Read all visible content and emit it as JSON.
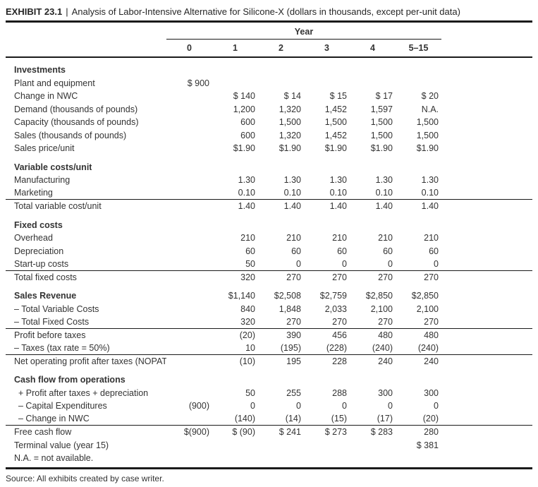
{
  "title": {
    "exhibit_label": "EXHIBIT 23.1",
    "separator": "|",
    "text": "Analysis of Labor-Intensive Alternative for Silicone-X (dollars in thousands, except per-unit data)"
  },
  "table": {
    "year_header": "Year",
    "columns": [
      "0",
      "1",
      "2",
      "3",
      "4",
      "5–15"
    ],
    "rows": [
      {
        "type": "section",
        "label": "Investments"
      },
      {
        "type": "data",
        "label": "Plant and equipment",
        "values": [
          "$ 900",
          "",
          "",
          "",
          "",
          ""
        ]
      },
      {
        "type": "data",
        "label": "Change in NWC",
        "values": [
          "",
          "$ 140",
          "$ 14",
          "$ 15",
          "$ 17",
          "$ 20"
        ]
      },
      {
        "type": "data",
        "label": "Demand (thousands of pounds)",
        "values": [
          "",
          "1,200",
          "1,320",
          "1,452",
          "1,597",
          "N.A."
        ]
      },
      {
        "type": "data",
        "label": "Capacity (thousands of pounds)",
        "values": [
          "",
          "600",
          "1,500",
          "1,500",
          "1,500",
          "1,500"
        ]
      },
      {
        "type": "data",
        "label": "Sales (thousands of pounds)",
        "values": [
          "",
          "600",
          "1,320",
          "1,452",
          "1,500",
          "1,500"
        ]
      },
      {
        "type": "data",
        "label": "Sales price/unit",
        "values": [
          "",
          "$1.90",
          "$1.90",
          "$1.90",
          "$1.90",
          "$1.90"
        ]
      },
      {
        "type": "section",
        "label": "Variable costs/unit"
      },
      {
        "type": "data",
        "label": "Manufacturing",
        "values": [
          "",
          "1.30",
          "1.30",
          "1.30",
          "1.30",
          "1.30"
        ]
      },
      {
        "type": "data",
        "label": "Marketing",
        "underline": true,
        "values": [
          "",
          "0.10",
          "0.10",
          "0.10",
          "0.10",
          "0.10"
        ]
      },
      {
        "type": "data",
        "label": "Total variable cost/unit",
        "values": [
          "",
          "1.40",
          "1.40",
          "1.40",
          "1.40",
          "1.40"
        ]
      },
      {
        "type": "section",
        "label": "Fixed costs"
      },
      {
        "type": "data",
        "label": "Overhead",
        "values": [
          "",
          "210",
          "210",
          "210",
          "210",
          "210"
        ]
      },
      {
        "type": "data",
        "label": "Depreciation",
        "values": [
          "",
          "60",
          "60",
          "60",
          "60",
          "60"
        ]
      },
      {
        "type": "data",
        "label": "Start-up costs",
        "underline": true,
        "values": [
          "",
          "50",
          "0",
          "0",
          "0",
          "0"
        ]
      },
      {
        "type": "data",
        "label": "Total fixed costs",
        "values": [
          "",
          "320",
          "270",
          "270",
          "270",
          "270"
        ]
      },
      {
        "type": "data",
        "label": "Sales Revenue",
        "bold": true,
        "space_before": true,
        "values": [
          "",
          "$1,140",
          "$2,508",
          "$2,759",
          "$2,850",
          "$2,850"
        ]
      },
      {
        "type": "data",
        "label": "– Total Variable Costs",
        "values": [
          "",
          "840",
          "1,848",
          "2,033",
          "2,100",
          "2,100"
        ]
      },
      {
        "type": "data",
        "label": "– Total Fixed Costs",
        "underline": true,
        "values": [
          "",
          "320",
          "270",
          "270",
          "270",
          "270"
        ]
      },
      {
        "type": "data",
        "label": "Profit before taxes",
        "values": [
          "",
          "(20)",
          "390",
          "456",
          "480",
          "480"
        ]
      },
      {
        "type": "data",
        "label": "– Taxes (tax rate = 50%)",
        "underline": true,
        "values": [
          "",
          "10",
          "(195)",
          "(228)",
          "(240)",
          "(240)"
        ]
      },
      {
        "type": "data",
        "label": "Net operating profit after taxes (NOPAT)",
        "values": [
          "",
          "(10)",
          "195",
          "228",
          "240",
          "240"
        ]
      },
      {
        "type": "section",
        "label": "Cash flow from operations"
      },
      {
        "type": "data",
        "label": "+ Profit after taxes + depreciation",
        "indent": true,
        "values": [
          "",
          "50",
          "255",
          "288",
          "300",
          "300"
        ]
      },
      {
        "type": "data",
        "label": "– Capital Expenditures",
        "indent": true,
        "values": [
          "(900)",
          "0",
          "0",
          "0",
          "0",
          "0"
        ]
      },
      {
        "type": "data",
        "label": "– Change in NWC",
        "indent": true,
        "underline": true,
        "values": [
          "",
          "(140)",
          "(14)",
          "(15)",
          "(17)",
          "(20)"
        ]
      },
      {
        "type": "data",
        "label": "Free cash flow",
        "values": [
          "$(900)",
          "$ (90)",
          "$ 241",
          "$ 273",
          "$ 283",
          "280"
        ]
      },
      {
        "type": "data",
        "label": "Terminal value (year 15)",
        "values": [
          "",
          "",
          "",
          "",
          "",
          "$ 381"
        ]
      },
      {
        "type": "note",
        "label": "N.A. = not available."
      }
    ]
  },
  "source": "Source: All exhibits created by case writer."
}
